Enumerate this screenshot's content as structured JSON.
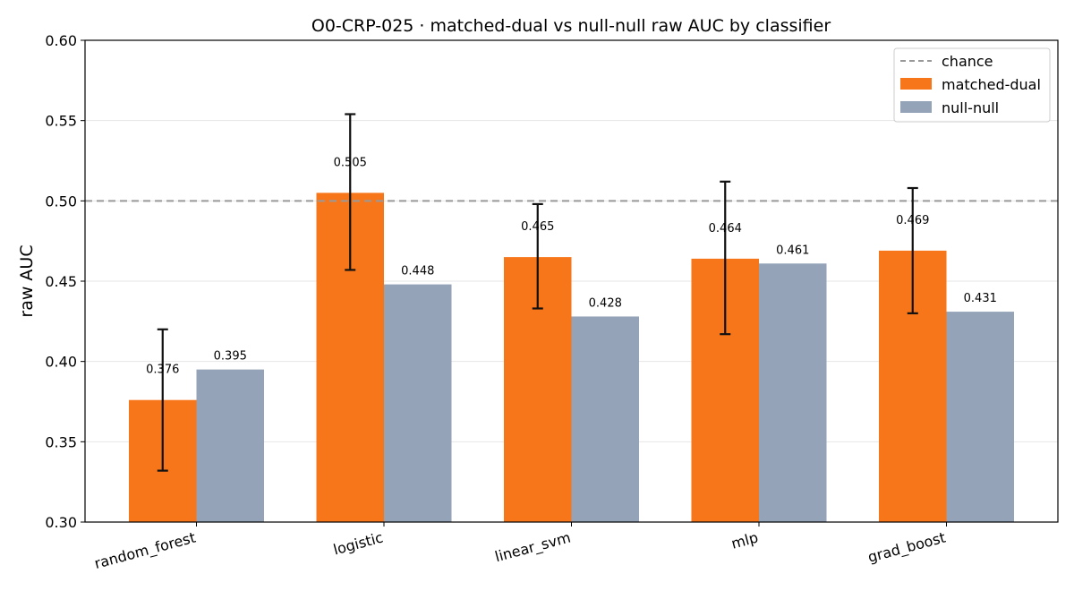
{
  "chart_data": {
    "type": "bar",
    "title": "O0-CRP-025 · matched-dual vs null-null raw AUC by classifier",
    "xlabel": "",
    "ylabel": "raw AUC",
    "ylim": [
      0.3,
      0.6
    ],
    "yticks": [
      0.3,
      0.35,
      0.4,
      0.45,
      0.5,
      0.55,
      0.6
    ],
    "ytick_labels": [
      "0.30",
      "0.35",
      "0.40",
      "0.45",
      "0.50",
      "0.55",
      "0.60"
    ],
    "grid": "horizontal",
    "categories": [
      "random_forest",
      "logistic",
      "linear_svm",
      "mlp",
      "grad_boost"
    ],
    "series": [
      {
        "name": "matched-dual",
        "color": "#f8761a",
        "values": [
          0.376,
          0.505,
          0.465,
          0.464,
          0.469
        ],
        "labels": [
          "0.376",
          "0.505",
          "0.465",
          "0.464",
          "0.469"
        ],
        "error_low": [
          0.332,
          0.457,
          0.433,
          0.417,
          0.43
        ],
        "error_high": [
          0.42,
          0.554,
          0.498,
          0.512,
          0.508
        ]
      },
      {
        "name": "null-null",
        "color": "#94a3b8",
        "values": [
          0.395,
          0.448,
          0.428,
          0.461,
          0.431
        ],
        "labels": [
          "0.395",
          "0.448",
          "0.428",
          "0.461",
          "0.431"
        ]
      }
    ],
    "reference_line": {
      "name": "chance",
      "value": 0.5,
      "color": "#999999",
      "style": "dashed"
    },
    "legend": {
      "position": "top-right",
      "entries": [
        "chance",
        "matched-dual",
        "null-null"
      ]
    }
  }
}
